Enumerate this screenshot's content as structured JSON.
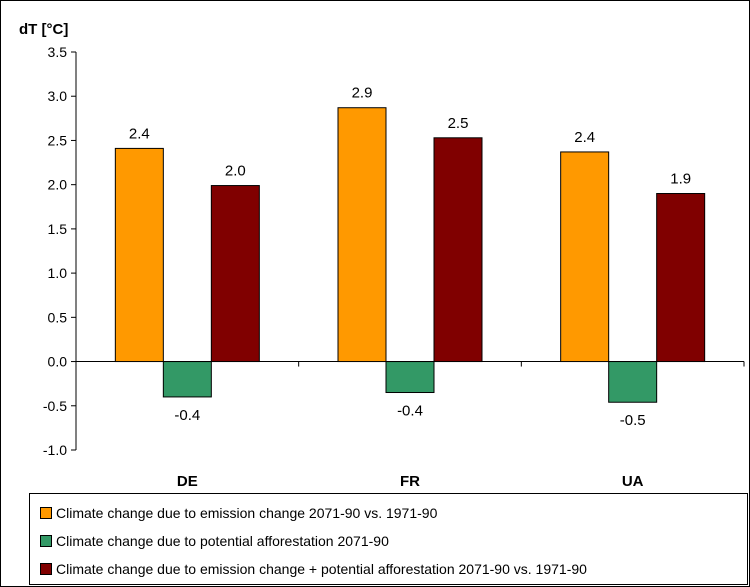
{
  "chart_data": {
    "type": "bar",
    "ylabel": "dT [°C]",
    "ylim": [
      -1.0,
      3.5
    ],
    "yticks": [
      -1.0,
      -0.5,
      0.0,
      0.5,
      1.0,
      1.5,
      2.0,
      2.5,
      3.0,
      3.5
    ],
    "ytick_labels": [
      "-1.0",
      "-0.5",
      "0.0",
      "0.5",
      "1.0",
      "1.5",
      "2.0",
      "2.5",
      "3.0",
      "3.5"
    ],
    "categories": [
      "DE",
      "FR",
      "UA"
    ],
    "grid": false,
    "legend_position": "bottom",
    "series": [
      {
        "name": "Climate change due to emission change 2071-90 vs. 1971-90",
        "color": "#FF9900",
        "values": [
          2.41,
          2.87,
          2.37
        ],
        "labels": [
          "2.4",
          "2.9",
          "2.4"
        ]
      },
      {
        "name": "Climate change due to potential afforestation 2071-90",
        "color": "#339966",
        "values": [
          -0.4,
          -0.35,
          -0.46
        ],
        "labels": [
          "-0.4",
          "-0.4",
          "-0.5"
        ]
      },
      {
        "name": "Climate change due to emission change + potential afforestation 2071-90 vs. 1971-90",
        "color": "#800000",
        "values": [
          1.99,
          2.53,
          1.9
        ],
        "labels": [
          "2.0",
          "2.5",
          "1.9"
        ]
      }
    ]
  }
}
